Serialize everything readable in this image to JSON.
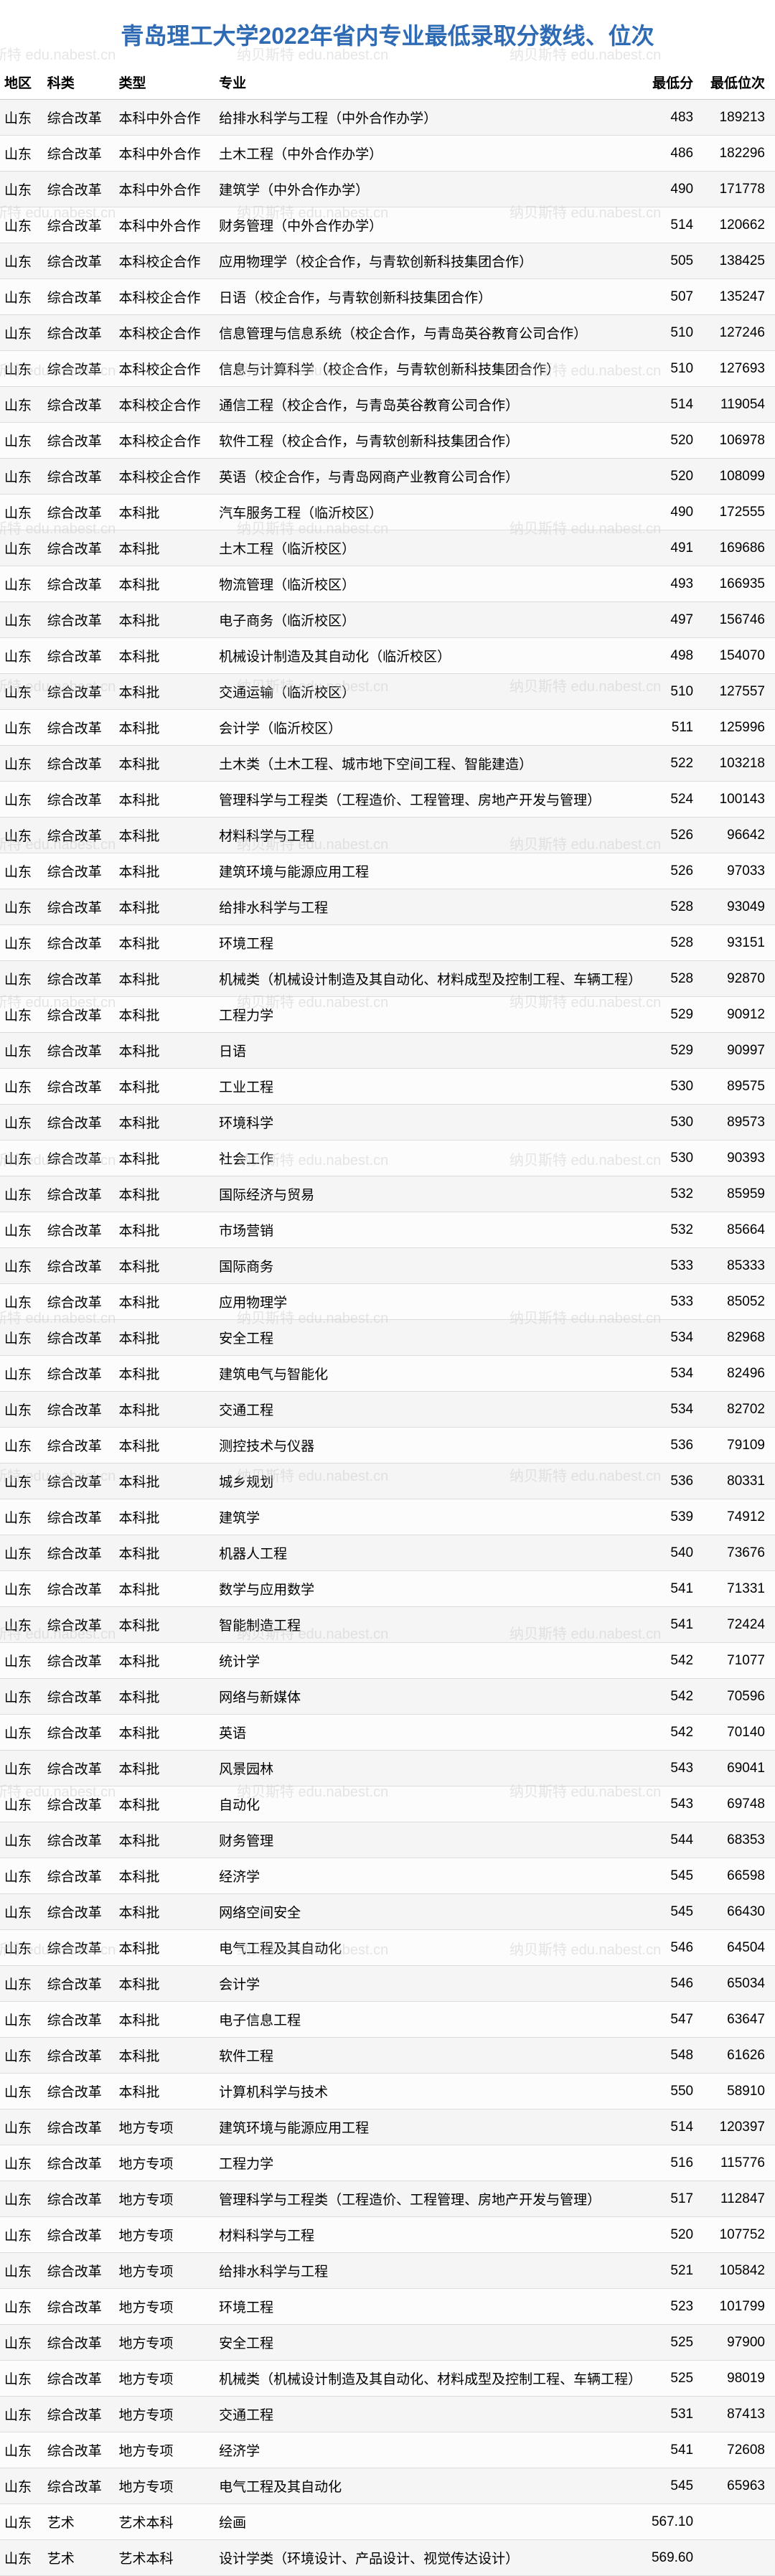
{
  "title": "青岛理工大学2022年省内专业最低录取分数线、位次",
  "watermark_text": "纳贝斯特 edu.nabest.cn",
  "colors": {
    "title": "#2e6bb4",
    "border": "#dddddd",
    "row_odd": "#f5f5f5",
    "row_even": "#fcfcfc",
    "watermark": "rgba(200,200,200,0.45)"
  },
  "columns": [
    "地区",
    "科类",
    "类型",
    "专业",
    "最低分",
    "最低位次"
  ],
  "rows": [
    [
      "山东",
      "综合改革",
      "本科中外合作",
      "给排水科学与工程（中外合作办学）",
      "483",
      "189213"
    ],
    [
      "山东",
      "综合改革",
      "本科中外合作",
      "土木工程（中外合作办学）",
      "486",
      "182296"
    ],
    [
      "山东",
      "综合改革",
      "本科中外合作",
      "建筑学（中外合作办学）",
      "490",
      "171778"
    ],
    [
      "山东",
      "综合改革",
      "本科中外合作",
      "财务管理（中外合作办学）",
      "514",
      "120662"
    ],
    [
      "山东",
      "综合改革",
      "本科校企合作",
      "应用物理学（校企合作，与青软创新科技集团合作）",
      "505",
      "138425"
    ],
    [
      "山东",
      "综合改革",
      "本科校企合作",
      "日语（校企合作，与青软创新科技集团合作）",
      "507",
      "135247"
    ],
    [
      "山东",
      "综合改革",
      "本科校企合作",
      "信息管理与信息系统（校企合作，与青岛英谷教育公司合作）",
      "510",
      "127246"
    ],
    [
      "山东",
      "综合改革",
      "本科校企合作",
      "信息与计算科学（校企合作，与青软创新科技集团合作）",
      "510",
      "127693"
    ],
    [
      "山东",
      "综合改革",
      "本科校企合作",
      "通信工程（校企合作，与青岛英谷教育公司合作）",
      "514",
      "119054"
    ],
    [
      "山东",
      "综合改革",
      "本科校企合作",
      "软件工程（校企合作，与青软创新科技集团合作）",
      "520",
      "106978"
    ],
    [
      "山东",
      "综合改革",
      "本科校企合作",
      "英语（校企合作，与青岛网商产业教育公司合作）",
      "520",
      "108099"
    ],
    [
      "山东",
      "综合改革",
      "本科批",
      "汽车服务工程（临沂校区）",
      "490",
      "172555"
    ],
    [
      "山东",
      "综合改革",
      "本科批",
      "土木工程（临沂校区）",
      "491",
      "169686"
    ],
    [
      "山东",
      "综合改革",
      "本科批",
      "物流管理（临沂校区）",
      "493",
      "166935"
    ],
    [
      "山东",
      "综合改革",
      "本科批",
      "电子商务（临沂校区）",
      "497",
      "156746"
    ],
    [
      "山东",
      "综合改革",
      "本科批",
      "机械设计制造及其自动化（临沂校区）",
      "498",
      "154070"
    ],
    [
      "山东",
      "综合改革",
      "本科批",
      "交通运输（临沂校区）",
      "510",
      "127557"
    ],
    [
      "山东",
      "综合改革",
      "本科批",
      "会计学（临沂校区）",
      "511",
      "125996"
    ],
    [
      "山东",
      "综合改革",
      "本科批",
      "土木类（土木工程、城市地下空间工程、智能建造）",
      "522",
      "103218"
    ],
    [
      "山东",
      "综合改革",
      "本科批",
      "管理科学与工程类（工程造价、工程管理、房地产开发与管理）",
      "524",
      "100143"
    ],
    [
      "山东",
      "综合改革",
      "本科批",
      "材料科学与工程",
      "526",
      "96642"
    ],
    [
      "山东",
      "综合改革",
      "本科批",
      "建筑环境与能源应用工程",
      "526",
      "97033"
    ],
    [
      "山东",
      "综合改革",
      "本科批",
      "给排水科学与工程",
      "528",
      "93049"
    ],
    [
      "山东",
      "综合改革",
      "本科批",
      "环境工程",
      "528",
      "93151"
    ],
    [
      "山东",
      "综合改革",
      "本科批",
      "机械类（机械设计制造及其自动化、材料成型及控制工程、车辆工程）",
      "528",
      "92870"
    ],
    [
      "山东",
      "综合改革",
      "本科批",
      "工程力学",
      "529",
      "90912"
    ],
    [
      "山东",
      "综合改革",
      "本科批",
      "日语",
      "529",
      "90997"
    ],
    [
      "山东",
      "综合改革",
      "本科批",
      "工业工程",
      "530",
      "89575"
    ],
    [
      "山东",
      "综合改革",
      "本科批",
      "环境科学",
      "530",
      "89573"
    ],
    [
      "山东",
      "综合改革",
      "本科批",
      "社会工作",
      "530",
      "90393"
    ],
    [
      "山东",
      "综合改革",
      "本科批",
      "国际经济与贸易",
      "532",
      "85959"
    ],
    [
      "山东",
      "综合改革",
      "本科批",
      "市场营销",
      "532",
      "85664"
    ],
    [
      "山东",
      "综合改革",
      "本科批",
      "国际商务",
      "533",
      "85333"
    ],
    [
      "山东",
      "综合改革",
      "本科批",
      "应用物理学",
      "533",
      "85052"
    ],
    [
      "山东",
      "综合改革",
      "本科批",
      "安全工程",
      "534",
      "82968"
    ],
    [
      "山东",
      "综合改革",
      "本科批",
      "建筑电气与智能化",
      "534",
      "82496"
    ],
    [
      "山东",
      "综合改革",
      "本科批",
      "交通工程",
      "534",
      "82702"
    ],
    [
      "山东",
      "综合改革",
      "本科批",
      "测控技术与仪器",
      "536",
      "79109"
    ],
    [
      "山东",
      "综合改革",
      "本科批",
      "城乡规划",
      "536",
      "80331"
    ],
    [
      "山东",
      "综合改革",
      "本科批",
      "建筑学",
      "539",
      "74912"
    ],
    [
      "山东",
      "综合改革",
      "本科批",
      "机器人工程",
      "540",
      "73676"
    ],
    [
      "山东",
      "综合改革",
      "本科批",
      "数学与应用数学",
      "541",
      "71331"
    ],
    [
      "山东",
      "综合改革",
      "本科批",
      "智能制造工程",
      "541",
      "72424"
    ],
    [
      "山东",
      "综合改革",
      "本科批",
      "统计学",
      "542",
      "71077"
    ],
    [
      "山东",
      "综合改革",
      "本科批",
      "网络与新媒体",
      "542",
      "70596"
    ],
    [
      "山东",
      "综合改革",
      "本科批",
      "英语",
      "542",
      "70140"
    ],
    [
      "山东",
      "综合改革",
      "本科批",
      "风景园林",
      "543",
      "69041"
    ],
    [
      "山东",
      "综合改革",
      "本科批",
      "自动化",
      "543",
      "69748"
    ],
    [
      "山东",
      "综合改革",
      "本科批",
      "财务管理",
      "544",
      "68353"
    ],
    [
      "山东",
      "综合改革",
      "本科批",
      "经济学",
      "545",
      "66598"
    ],
    [
      "山东",
      "综合改革",
      "本科批",
      "网络空间安全",
      "545",
      "66430"
    ],
    [
      "山东",
      "综合改革",
      "本科批",
      "电气工程及其自动化",
      "546",
      "64504"
    ],
    [
      "山东",
      "综合改革",
      "本科批",
      "会计学",
      "546",
      "65034"
    ],
    [
      "山东",
      "综合改革",
      "本科批",
      "电子信息工程",
      "547",
      "63647"
    ],
    [
      "山东",
      "综合改革",
      "本科批",
      "软件工程",
      "548",
      "61626"
    ],
    [
      "山东",
      "综合改革",
      "本科批",
      "计算机科学与技术",
      "550",
      "58910"
    ],
    [
      "山东",
      "综合改革",
      "地方专项",
      "建筑环境与能源应用工程",
      "514",
      "120397"
    ],
    [
      "山东",
      "综合改革",
      "地方专项",
      "工程力学",
      "516",
      "115776"
    ],
    [
      "山东",
      "综合改革",
      "地方专项",
      "管理科学与工程类（工程造价、工程管理、房地产开发与管理）",
      "517",
      "112847"
    ],
    [
      "山东",
      "综合改革",
      "地方专项",
      "材料科学与工程",
      "520",
      "107752"
    ],
    [
      "山东",
      "综合改革",
      "地方专项",
      "给排水科学与工程",
      "521",
      "105842"
    ],
    [
      "山东",
      "综合改革",
      "地方专项",
      "环境工程",
      "523",
      "101799"
    ],
    [
      "山东",
      "综合改革",
      "地方专项",
      "安全工程",
      "525",
      "97900"
    ],
    [
      "山东",
      "综合改革",
      "地方专项",
      "机械类（机械设计制造及其自动化、材料成型及控制工程、车辆工程）",
      "525",
      "98019"
    ],
    [
      "山东",
      "综合改革",
      "地方专项",
      "交通工程",
      "531",
      "87413"
    ],
    [
      "山东",
      "综合改革",
      "地方专项",
      "经济学",
      "541",
      "72608"
    ],
    [
      "山东",
      "综合改革",
      "地方专项",
      "电气工程及其自动化",
      "545",
      "65963"
    ],
    [
      "山东",
      "艺术",
      "艺术本科",
      "绘画",
      "567.10",
      ""
    ],
    [
      "山东",
      "艺术",
      "艺术本科",
      "设计学类（环境设计、产品设计、视觉传达设计）",
      "569.60",
      ""
    ]
  ]
}
